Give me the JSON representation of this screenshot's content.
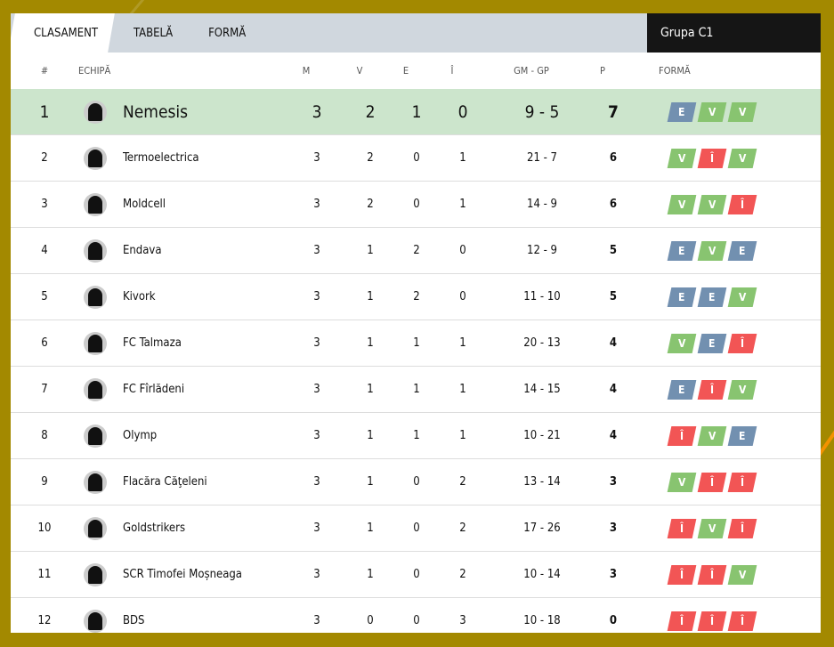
{
  "tabs": [
    "CLASAMENT",
    "TABELĂ",
    "FORMĂ"
  ],
  "active_tab": "CLASAMENT",
  "group": "Grupa C1",
  "columns": {
    "pos": "#",
    "team": "ECHIPĂ",
    "m": "M",
    "v": "V",
    "e": "E",
    "l": "Î",
    "gm": "GM - GP",
    "p": "P",
    "forma": "FORMĂ"
  },
  "colors": {
    "E": "#7290b0",
    "V": "#88c470",
    "Î": "#f25555",
    "leader_bg": "#cce5cc"
  },
  "rows": [
    {
      "pos": "1",
      "team": "Nemesis",
      "m": "3",
      "v": "2",
      "e": "1",
      "l": "0",
      "gm": "9 - 5",
      "p": "7",
      "form": [
        "E",
        "V",
        "V"
      ]
    },
    {
      "pos": "2",
      "team": "Termoelectrica",
      "m": "3",
      "v": "2",
      "e": "0",
      "l": "1",
      "gm": "21 - 7",
      "p": "6",
      "form": [
        "V",
        "Î",
        "V"
      ]
    },
    {
      "pos": "3",
      "team": "Moldcell",
      "m": "3",
      "v": "2",
      "e": "0",
      "l": "1",
      "gm": "14 - 9",
      "p": "6",
      "form": [
        "V",
        "V",
        "Î"
      ]
    },
    {
      "pos": "4",
      "team": "Endava",
      "m": "3",
      "v": "1",
      "e": "2",
      "l": "0",
      "gm": "12 - 9",
      "p": "5",
      "form": [
        "E",
        "V",
        "E"
      ]
    },
    {
      "pos": "5",
      "team": "Kivork",
      "m": "3",
      "v": "1",
      "e": "2",
      "l": "0",
      "gm": "11 - 10",
      "p": "5",
      "form": [
        "E",
        "E",
        "V"
      ]
    },
    {
      "pos": "6",
      "team": "FC Talmaza",
      "m": "3",
      "v": "1",
      "e": "1",
      "l": "1",
      "gm": "20 - 13",
      "p": "4",
      "form": [
        "V",
        "E",
        "Î"
      ]
    },
    {
      "pos": "7",
      "team": "FC Fîrlădeni",
      "m": "3",
      "v": "1",
      "e": "1",
      "l": "1",
      "gm": "14 - 15",
      "p": "4",
      "form": [
        "E",
        "Î",
        "V"
      ]
    },
    {
      "pos": "8",
      "team": "Olymp",
      "m": "3",
      "v": "1",
      "e": "1",
      "l": "1",
      "gm": "10 - 21",
      "p": "4",
      "form": [
        "Î",
        "V",
        "E"
      ]
    },
    {
      "pos": "9",
      "team": "Flacăra Căţeleni",
      "m": "3",
      "v": "1",
      "e": "0",
      "l": "2",
      "gm": "13 - 14",
      "p": "3",
      "form": [
        "V",
        "Î",
        "Î"
      ]
    },
    {
      "pos": "10",
      "team": "Goldstrikers",
      "m": "3",
      "v": "1",
      "e": "0",
      "l": "2",
      "gm": "17 - 26",
      "p": "3",
      "form": [
        "Î",
        "V",
        "Î"
      ]
    },
    {
      "pos": "11",
      "team": "SCR Timofei Moșneaga",
      "m": "3",
      "v": "1",
      "e": "0",
      "l": "2",
      "gm": "10 - 14",
      "p": "3",
      "form": [
        "Î",
        "Î",
        "V"
      ]
    },
    {
      "pos": "12",
      "team": "BDS",
      "m": "3",
      "v": "0",
      "e": "0",
      "l": "3",
      "gm": "10 - 18",
      "p": "0",
      "form": [
        "Î",
        "Î",
        "Î"
      ]
    }
  ]
}
